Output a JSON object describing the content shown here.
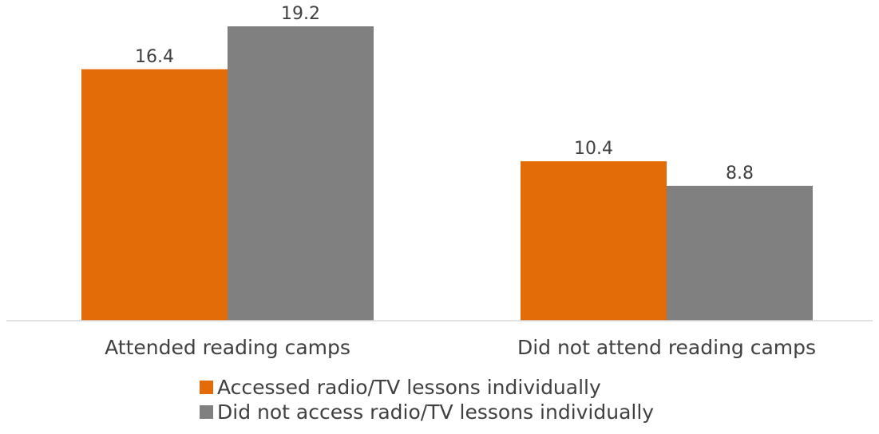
{
  "chart_data": {
    "type": "bar",
    "categories": [
      "Attended reading camps",
      "Did not attend reading camps"
    ],
    "series": [
      {
        "name": "Accessed radio/TV lessons individually",
        "values": [
          16.4,
          10.4
        ],
        "color": "#E36C09"
      },
      {
        "name": "Did not access radio/TV lessons individually",
        "values": [
          19.2,
          8.8
        ],
        "color": "#808080"
      }
    ],
    "value_labels": [
      [
        "16.4",
        "10.4"
      ],
      [
        "19.2",
        "8.8"
      ]
    ],
    "title": "",
    "xlabel": "",
    "ylabel": "",
    "ylim": [
      0,
      19.2
    ],
    "grid": false,
    "legend": "bottom",
    "axis_color": "#D9D9D9"
  }
}
